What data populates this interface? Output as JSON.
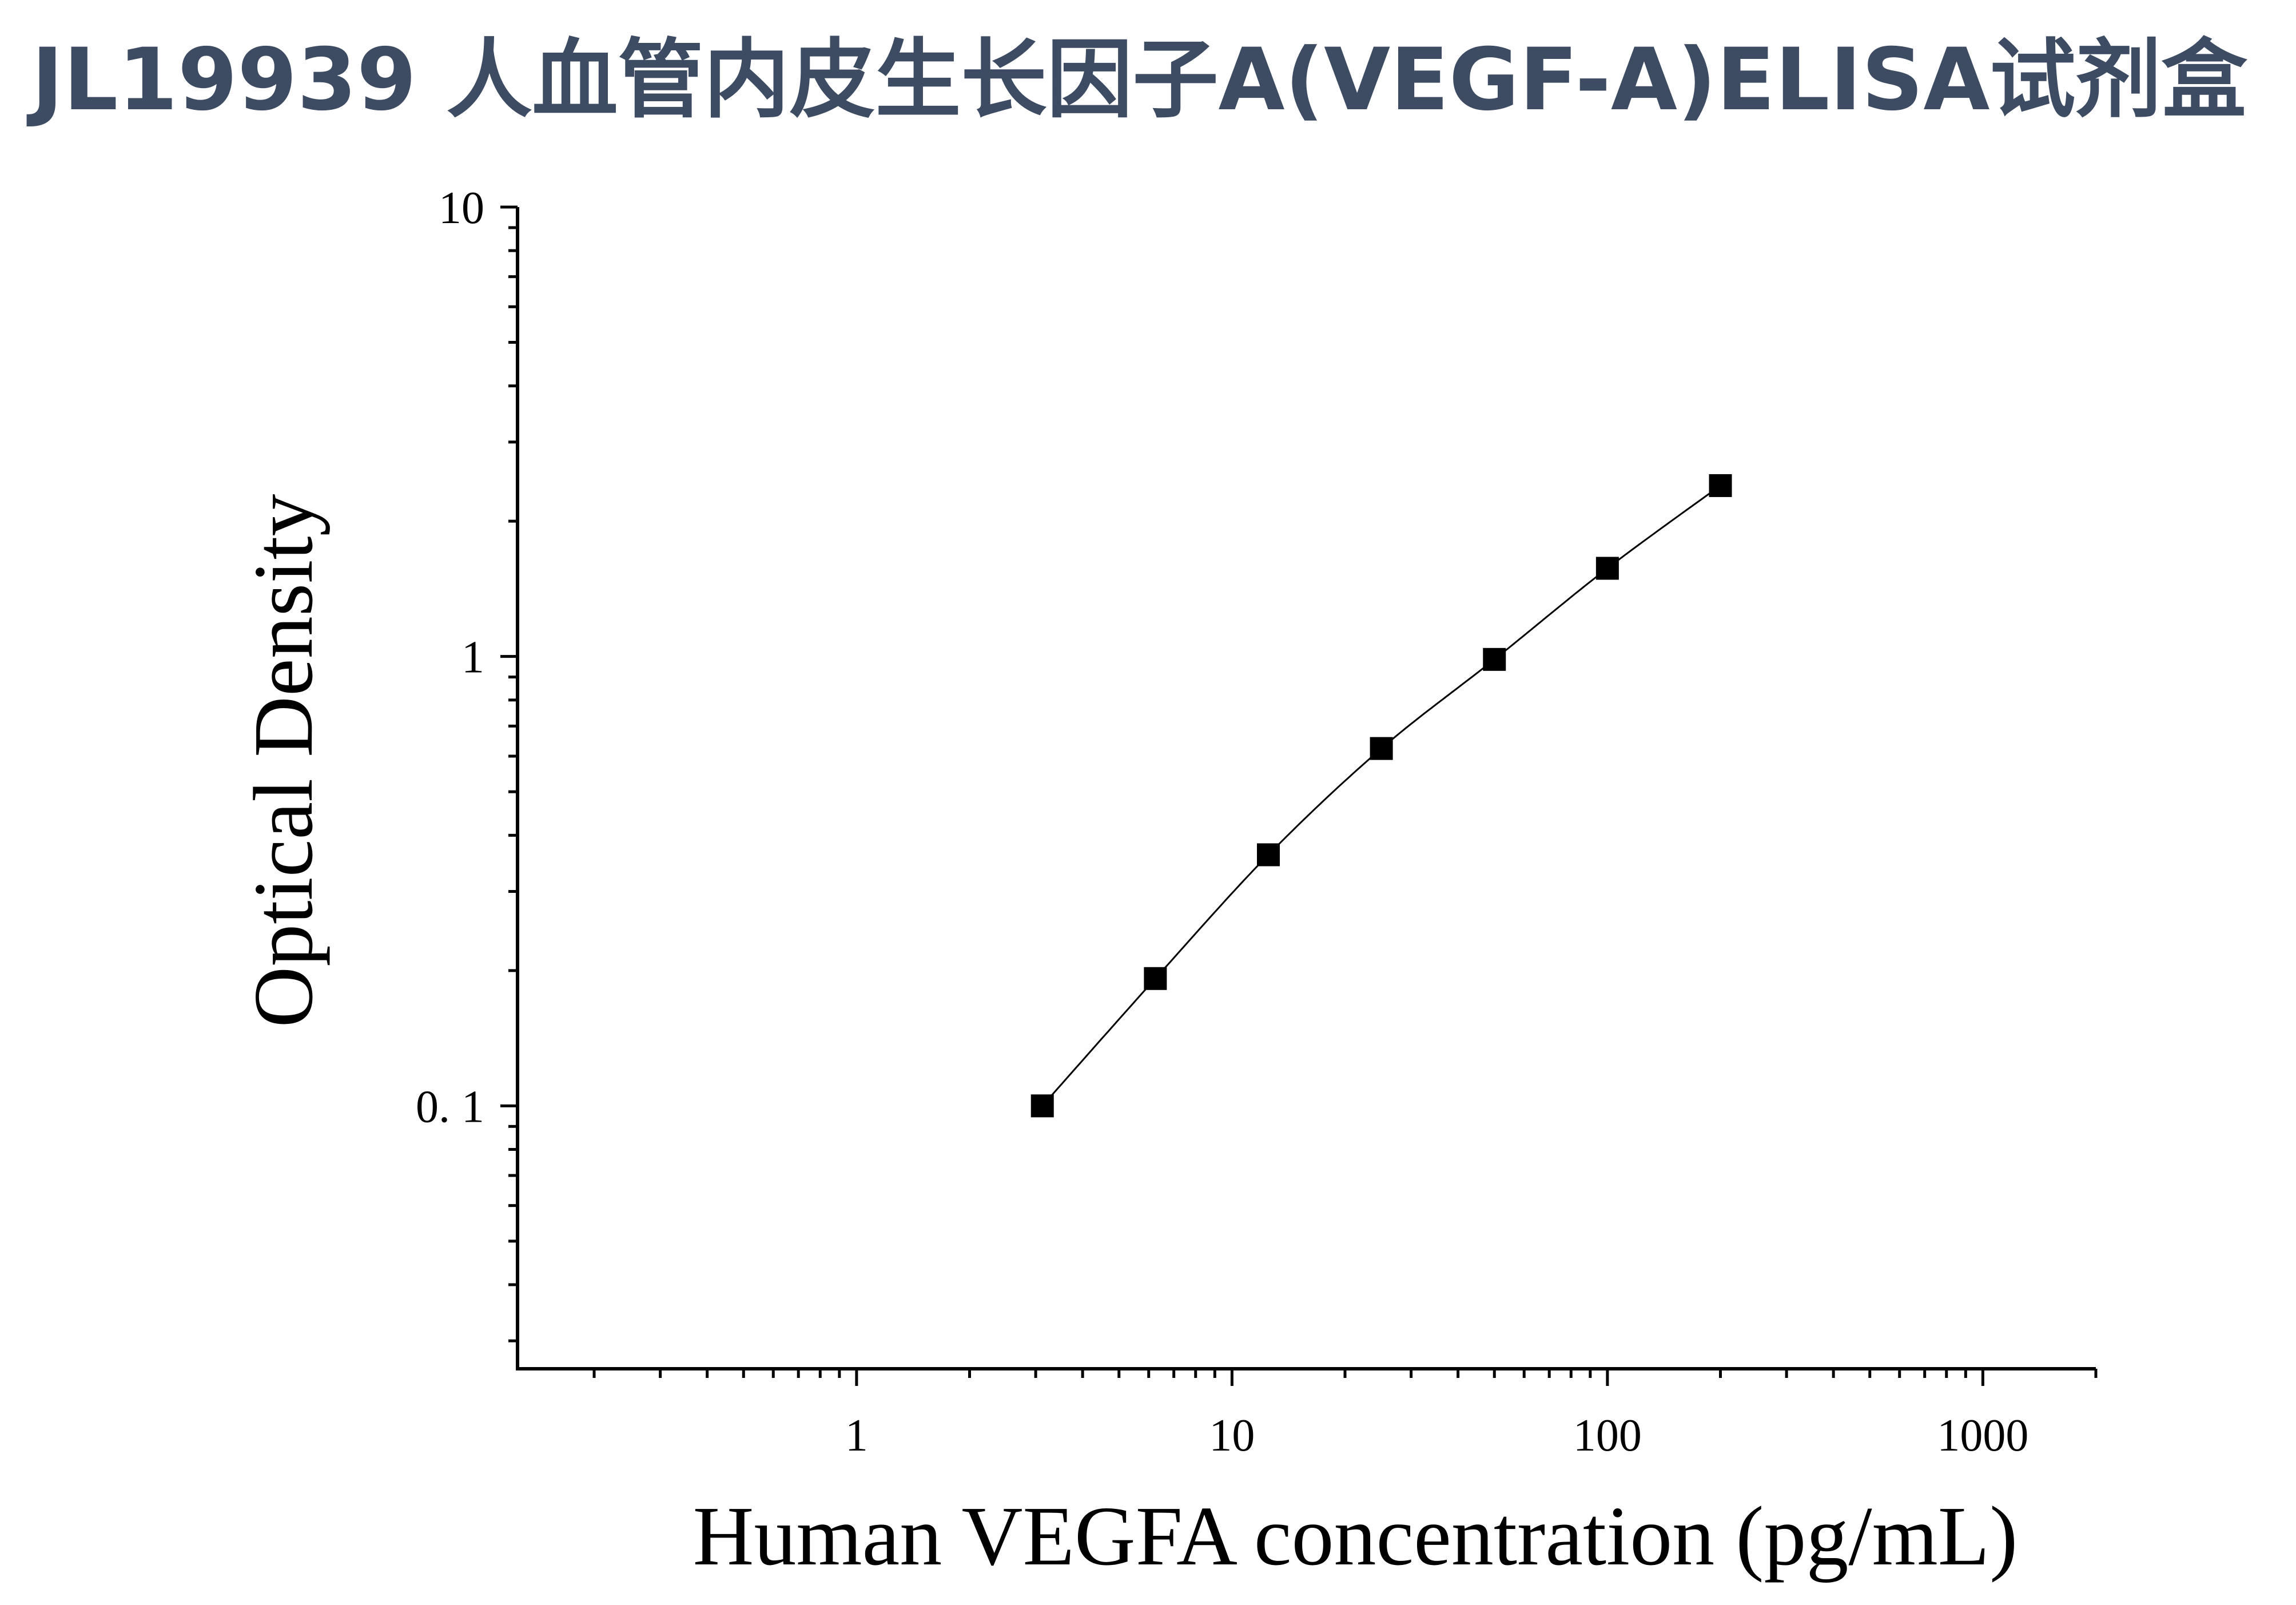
{
  "title": "JL19939 人血管内皮生长因子A(VEGF-A)ELISA试剂盒",
  "chart_data": {
    "type": "line",
    "title": "JL19939 人血管内皮生长因子A(VEGF-A)ELISA试剂盒",
    "xlabel": "Human VEGFA concentration (pg/mL)",
    "ylabel": "Optical Density",
    "xscale": "log",
    "yscale": "log",
    "xlim": [
      0.125,
      2000
    ],
    "ylim": [
      0.026,
      10
    ],
    "xticks": [
      {
        "value": 1,
        "label": "1"
      },
      {
        "value": 10,
        "label": "10"
      },
      {
        "value": 100,
        "label": "100"
      },
      {
        "value": 1000,
        "label": "1000"
      }
    ],
    "yticks": [
      {
        "value": 0.1,
        "label": "0. 1"
      },
      {
        "value": 1,
        "label": "1"
      },
      {
        "value": 10,
        "label": "10"
      }
    ],
    "grid": false,
    "legend": "none",
    "marker": "square",
    "color": "#000000",
    "series": [
      {
        "x": [
          3.125,
          6.25,
          12.5,
          25,
          50,
          100,
          200
        ],
        "y": [
          0.1,
          0.192,
          0.362,
          0.624,
          0.985,
          1.571,
          2.4
        ]
      }
    ]
  }
}
